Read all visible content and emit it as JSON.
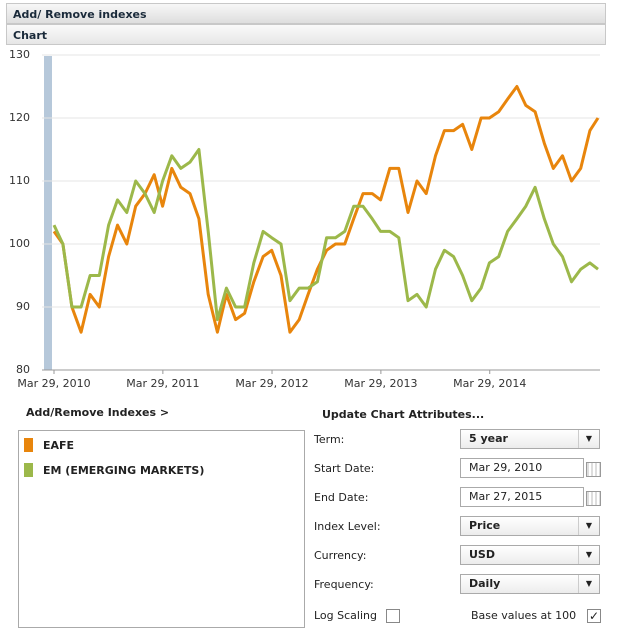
{
  "header": {
    "title": "Add/ Remove indexes",
    "section": "Chart"
  },
  "chart_data": {
    "type": "line",
    "x": [
      "2010-03-29",
      "2010-04-28",
      "2010-05-28",
      "2010-06-28",
      "2010-07-28",
      "2010-08-28",
      "2010-09-28",
      "2010-10-28",
      "2010-11-28",
      "2010-12-28",
      "2011-01-28",
      "2011-02-28",
      "2011-03-28",
      "2011-04-28",
      "2011-05-28",
      "2011-06-28",
      "2011-07-28",
      "2011-08-28",
      "2011-09-28",
      "2011-10-28",
      "2011-11-28",
      "2011-12-28",
      "2012-01-28",
      "2012-02-28",
      "2012-03-28",
      "2012-04-28",
      "2012-05-28",
      "2012-06-28",
      "2012-07-28",
      "2012-08-28",
      "2012-09-28",
      "2012-10-28",
      "2012-11-28",
      "2012-12-28",
      "2013-01-28",
      "2013-02-28",
      "2013-03-28",
      "2013-04-28",
      "2013-05-28",
      "2013-06-28",
      "2013-07-28",
      "2013-08-28",
      "2013-09-28",
      "2013-10-28",
      "2013-11-28",
      "2013-12-28",
      "2014-01-28",
      "2014-02-28",
      "2014-03-28",
      "2014-04-28",
      "2014-05-28",
      "2014-06-28",
      "2014-07-28",
      "2014-08-28",
      "2014-09-28",
      "2014-10-28",
      "2014-11-28",
      "2014-12-28",
      "2015-01-28",
      "2015-02-28",
      "2015-03-27"
    ],
    "series": [
      {
        "name": "EAFE",
        "color": "#e8850c",
        "values": [
          102,
          100,
          90,
          86,
          92,
          90,
          98,
          103,
          100,
          106,
          108,
          111,
          106,
          112,
          109,
          108,
          104,
          92,
          86,
          92,
          88,
          89,
          94,
          98,
          99,
          95,
          86,
          88,
          92,
          96,
          99,
          100,
          100,
          104,
          108,
          108,
          107,
          112,
          112,
          105,
          110,
          108,
          114,
          118,
          118,
          119,
          115,
          120,
          120,
          121,
          123,
          125,
          122,
          121,
          116,
          112,
          114,
          110,
          112,
          118,
          120
        ]
      },
      {
        "name": "EM (EMERGING MARKETS)",
        "color": "#9cb84a",
        "values": [
          103,
          100,
          90,
          90,
          95,
          95,
          103,
          107,
          105,
          110,
          108,
          105,
          110,
          114,
          112,
          113,
          115,
          102,
          88,
          93,
          90,
          90,
          97,
          102,
          101,
          100,
          91,
          93,
          93,
          94,
          101,
          101,
          102,
          106,
          106,
          104,
          102,
          102,
          101,
          91,
          92,
          90,
          96,
          99,
          98,
          95,
          91,
          93,
          97,
          98,
          102,
          104,
          106,
          109,
          104,
          100,
          98,
          94,
          96,
          97,
          96
        ]
      }
    ],
    "xlim": [
      "2010-03-29",
      "2015-03-27"
    ],
    "xticks": [
      {
        "value": "2010-03-29",
        "label": "Mar 29, 2010"
      },
      {
        "value": "2011-03-29",
        "label": "Mar 29, 2011"
      },
      {
        "value": "2012-03-29",
        "label": "Mar 29, 2012"
      },
      {
        "value": "2013-03-29",
        "label": "Mar 29, 2013"
      },
      {
        "value": "2014-03-29",
        "label": "Mar 29, 2014"
      }
    ],
    "ylim": [
      80,
      130
    ],
    "yticks": [
      80,
      90,
      100,
      110,
      120,
      130
    ],
    "grid": true,
    "log_scale": false,
    "base_values_at_100": true
  },
  "indexes": {
    "title": "Add/Remove Indexes >"
  },
  "form": {
    "title": "Update Chart Attributes...",
    "rows": [
      {
        "label": "Term:",
        "value": "5 year",
        "kind": "select"
      },
      {
        "label": "Start Date:",
        "value": "Mar 29, 2010",
        "kind": "date"
      },
      {
        "label": "End Date:",
        "value": "Mar 27, 2015",
        "kind": "date"
      },
      {
        "label": "Index Level:",
        "value": "Price",
        "kind": "select"
      },
      {
        "label": "Currency:",
        "value": "USD",
        "kind": "select"
      },
      {
        "label": "Frequency:",
        "value": "Daily",
        "kind": "select"
      }
    ],
    "log_label": "Log Scaling",
    "base_label": "Base values at 100"
  }
}
